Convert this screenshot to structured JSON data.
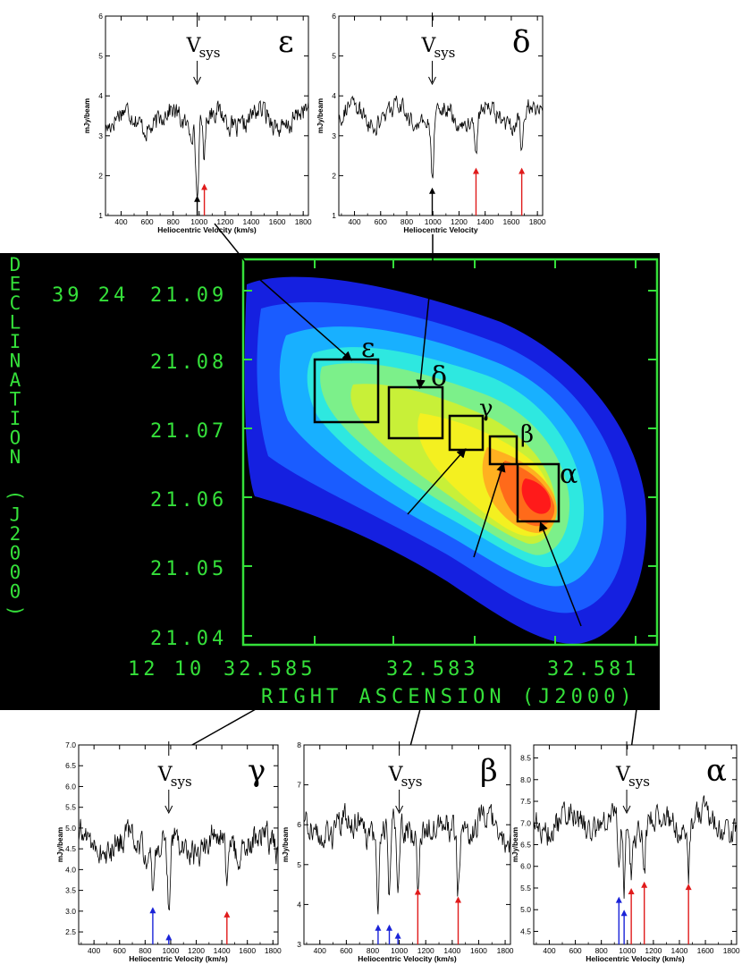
{
  "colors": {
    "axis_green": "#35e03a",
    "red_arrow": "#e01b1b",
    "blue_arrow": "#1a23d8",
    "black_arrow": "#000000",
    "background": "#000000"
  },
  "map": {
    "dec_label": "DECLINATION (J2000)",
    "ra_label": "RIGHT ASCENSION (J2000)",
    "dec_prefix": "39 24",
    "ra_prefix": "12 10",
    "dec_ticks": [
      "21.09",
      "21.08",
      "21.07",
      "21.06",
      "21.05",
      "21.04"
    ],
    "ra_ticks": [
      "32.585",
      "32.583",
      "32.581"
    ],
    "regions": [
      {
        "id": "alpha",
        "label": "α"
      },
      {
        "id": "beta",
        "label": "β"
      },
      {
        "id": "gamma",
        "label": "γ"
      },
      {
        "id": "delta",
        "label": "δ"
      },
      {
        "id": "epsilon",
        "label": "ε"
      }
    ]
  },
  "chart_data": [
    {
      "type": "line",
      "id": "epsilon",
      "label": "ε",
      "xlabel": "Heliocentric Velocity (km/s)",
      "ylabel": "mJy/beam",
      "xlim": [
        280,
        1840
      ],
      "ylim": [
        1,
        6
      ],
      "xticks": [
        400,
        600,
        800,
        1000,
        1200,
        1400,
        1600,
        1800
      ],
      "yticks": [
        "1",
        "2",
        "3",
        "4",
        "5",
        "6"
      ],
      "vsys_label": "V",
      "vsys_sub": "sys",
      "vsys": 985,
      "base": 3.4,
      "noise": 0.42,
      "markers": [
        {
          "v": 985,
          "color": "black",
          "tip": 1.5
        },
        {
          "v": 1040,
          "color": "red",
          "tip": 1.8
        }
      ],
      "dips": [
        {
          "v": 985,
          "depth": 1.8,
          "width": 14
        },
        {
          "v": 1040,
          "depth": 0.9,
          "width": 12
        }
      ]
    },
    {
      "type": "line",
      "id": "delta",
      "label": "δ",
      "xlabel": "Heliocentric Velocity",
      "ylabel": "mJy/beam",
      "xlim": [
        280,
        1840
      ],
      "ylim": [
        1,
        6
      ],
      "xticks": [
        400,
        600,
        800,
        1000,
        1200,
        1400,
        1600,
        1800
      ],
      "yticks": [
        "1",
        "2",
        "3",
        "4",
        "5",
        "6"
      ],
      "vsys_label": "V",
      "vsys_sub": "sys",
      "vsys": 995,
      "base": 3.5,
      "noise": 0.38,
      "markers": [
        {
          "v": 995,
          "color": "black",
          "tip": 1.7
        },
        {
          "v": 1330,
          "color": "red",
          "tip": 2.2
        },
        {
          "v": 1680,
          "color": "red",
          "tip": 2.2
        }
      ],
      "dips": [
        {
          "v": 995,
          "depth": 1.6,
          "width": 16
        },
        {
          "v": 1330,
          "depth": 1.0,
          "width": 12
        },
        {
          "v": 1680,
          "depth": 1.1,
          "width": 12
        }
      ]
    },
    {
      "type": "line",
      "id": "gamma",
      "label": "γ",
      "xlabel": "Heliocentric Velocity (km/s)",
      "ylabel": "mJy/beam",
      "xlim": [
        280,
        1840
      ],
      "ylim": [
        2.2,
        7.0
      ],
      "xticks": [
        400,
        600,
        800,
        1000,
        1200,
        1400,
        1600,
        1800
      ],
      "yticks": [
        "2.5",
        "3.0",
        "3.5",
        "4.0",
        "4.5",
        "5.0",
        "5.5",
        "6.0",
        "6.5",
        "7.0"
      ],
      "vsys_label": "V",
      "vsys_sub": "sys",
      "vsys": 985,
      "base": 4.6,
      "noise": 0.55,
      "markers": [
        {
          "v": 860,
          "color": "blue",
          "tip": 3.1
        },
        {
          "v": 985,
          "color": "blue",
          "tip": 2.45
        },
        {
          "v": 1440,
          "color": "red",
          "tip": 3.0
        }
      ],
      "dips": [
        {
          "v": 860,
          "depth": 1.1,
          "width": 12
        },
        {
          "v": 985,
          "depth": 1.7,
          "width": 14
        },
        {
          "v": 1440,
          "depth": 1.1,
          "width": 12
        }
      ]
    },
    {
      "type": "line",
      "id": "beta",
      "label": "β",
      "xlabel": "Heliocentric Velocity (km/s)",
      "ylabel": "mJy/beam",
      "xlim": [
        280,
        1840
      ],
      "ylim": [
        3,
        8
      ],
      "xticks": [
        400,
        600,
        800,
        1000,
        1200,
        1400,
        1600,
        1800
      ],
      "yticks": [
        "3",
        "4",
        "5",
        "6",
        "7",
        "8"
      ],
      "vsys_label": "V",
      "vsys_sub": "sys",
      "vsys": 1000,
      "base": 5.9,
      "noise": 0.55,
      "markers": [
        {
          "v": 840,
          "color": "blue",
          "tip": 3.5
        },
        {
          "v": 925,
          "color": "blue",
          "tip": 3.5
        },
        {
          "v": 990,
          "color": "blue",
          "tip": 3.3
        },
        {
          "v": 1140,
          "color": "red",
          "tip": 4.4
        },
        {
          "v": 1445,
          "color": "red",
          "tip": 4.2
        }
      ],
      "dips": [
        {
          "v": 840,
          "depth": 2.0,
          "width": 12
        },
        {
          "v": 925,
          "depth": 2.0,
          "width": 12
        },
        {
          "v": 990,
          "depth": 2.2,
          "width": 12
        },
        {
          "v": 1140,
          "depth": 1.3,
          "width": 12
        },
        {
          "v": 1445,
          "depth": 1.4,
          "width": 12
        }
      ]
    },
    {
      "type": "line",
      "id": "alpha",
      "label": "α",
      "xlabel": "Heliocentric Velocity (km/s)",
      "ylabel": "mJy/beam",
      "xlim": [
        280,
        1840
      ],
      "ylim": [
        4.2,
        8.8
      ],
      "xticks": [
        400,
        600,
        800,
        1000,
        1200,
        1400,
        1600,
        1800
      ],
      "yticks": [
        "4.5",
        "5.0",
        "5.5",
        "6.0",
        "6.5",
        "7.0",
        "7.5",
        "8.0",
        "8.5"
      ],
      "vsys_label": "V",
      "vsys_sub": "sys",
      "vsys": 995,
      "base": 7.0,
      "noise": 0.5,
      "markers": [
        {
          "v": 935,
          "color": "blue",
          "tip": 5.3
        },
        {
          "v": 975,
          "color": "blue",
          "tip": 5.0
        },
        {
          "v": 1030,
          "color": "red",
          "tip": 5.5
        },
        {
          "v": 1130,
          "color": "red",
          "tip": 5.65
        },
        {
          "v": 1470,
          "color": "red",
          "tip": 5.6
        }
      ],
      "dips": [
        {
          "v": 935,
          "depth": 1.4,
          "width": 12
        },
        {
          "v": 975,
          "depth": 1.5,
          "width": 12
        },
        {
          "v": 1030,
          "depth": 1.1,
          "width": 12
        },
        {
          "v": 1130,
          "depth": 1.0,
          "width": 12
        },
        {
          "v": 1470,
          "depth": 1.2,
          "width": 12
        }
      ]
    }
  ]
}
